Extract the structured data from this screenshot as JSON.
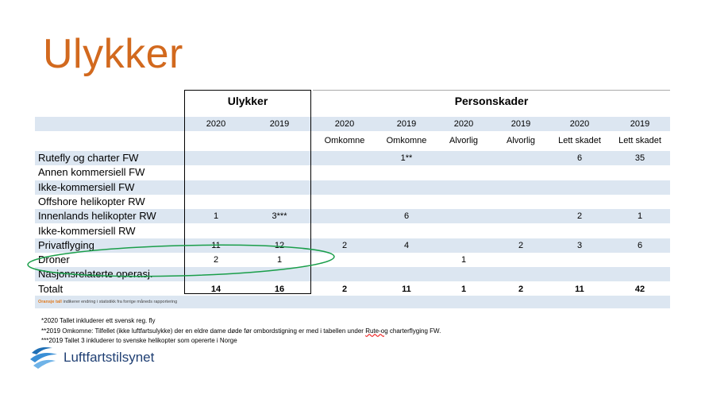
{
  "title": "Ulykker",
  "groups": {
    "ulykker": "Ulykker",
    "personskader": "Personskader"
  },
  "years": [
    "2020",
    "2019",
    "2020",
    "2019",
    "2020",
    "2019",
    "2020",
    "2019"
  ],
  "subheaders": [
    "",
    "",
    "Omkomne",
    "Omkomne",
    "Alvorlig",
    "Alvorlig",
    "Lett skadet",
    "Lett skadet"
  ],
  "rows": [
    {
      "label": "Rutefly og charter FW",
      "values": [
        "",
        "",
        "",
        "1**",
        "",
        "",
        "6",
        "35"
      ]
    },
    {
      "label": "Annen kommersiell FW",
      "values": [
        "",
        "",
        "",
        "",
        "",
        "",
        "",
        ""
      ]
    },
    {
      "label": "Ikke-kommersiell FW",
      "values": [
        "",
        "",
        "",
        "",
        "",
        "",
        "",
        ""
      ]
    },
    {
      "label": "Offshore helikopter RW",
      "values": [
        "",
        "",
        "",
        "",
        "",
        "",
        "",
        ""
      ]
    },
    {
      "label": "Innenlands helikopter RW",
      "values": [
        "1",
        "3***",
        "",
        "6",
        "",
        "",
        "2",
        "1"
      ]
    },
    {
      "label": "Ikke-kommersiell RW",
      "values": [
        "",
        "",
        "",
        "",
        "",
        "",
        "",
        ""
      ]
    },
    {
      "label": "Privatflyging",
      "values": [
        "11",
        "12",
        "2",
        "4",
        "",
        "2",
        "3",
        "6"
      ]
    },
    {
      "label": "Droner",
      "values": [
        "2",
        "1",
        "",
        "",
        "1",
        "",
        "",
        ""
      ]
    },
    {
      "label": "Nasjonsrelaterte operasj.",
      "values": [
        "",
        "",
        "",
        "",
        "",
        "",
        "",
        ""
      ]
    },
    {
      "label": "Totalt",
      "values": [
        "14",
        "16",
        "2",
        "11",
        "1",
        "2",
        "11",
        "42"
      ]
    }
  ],
  "legend": {
    "highlight": "Oransje tall",
    "text": " indikerer endring i statistikk fra forrige måneds rapportering"
  },
  "footnotes": {
    "f1": "*2020 Tallet inkluderer ett svensk reg. fly",
    "f2a": "**2019 Omkomne: Tilfellet (ikke luftfartsulykke) der en eldre dame døde før ombordstigning er med i tabellen under ",
    "f2b": "Rute-og",
    "f2c": " charterflyging FW.",
    "f3": "***2019 Tallet 3 inkluderer to svenske helikopter som opererte i Norge"
  },
  "logo": {
    "text": "Luftfartstilsynet"
  },
  "colors": {
    "title": "#d2691e",
    "band": "#dce6f1",
    "ellipse": "#1a9e4a",
    "logo": "#1f3f73"
  }
}
